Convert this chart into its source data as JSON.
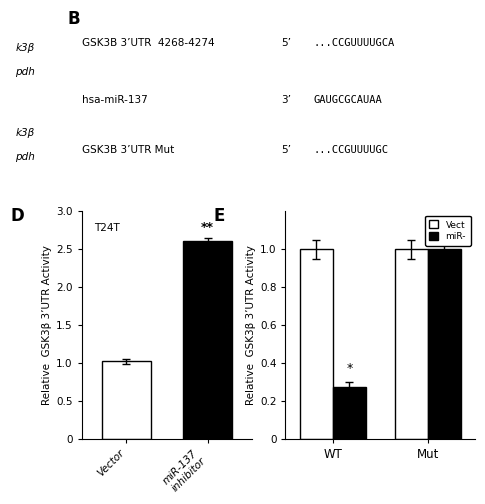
{
  "panel_B": {
    "rows": [
      {
        "label": "GSK3B 3’UTR  4268-4274",
        "dir": "5’",
        "seq": "...CCGUUUUGCA"
      },
      {
        "label": "hsa-miR-137",
        "dir": "3’",
        "seq": "GAUGCGCAUAA"
      },
      {
        "label": "GSK3B 3’UTR Mut",
        "dir": "5’",
        "seq": "...CCGUUUUGC"
      }
    ],
    "left_italic": [
      {
        "text": "k3β",
        "row": 0,
        "sub": 0
      },
      {
        "text": "pdh",
        "row": 0,
        "sub": 1
      },
      {
        "text": "k3β",
        "row": 2,
        "sub": 0
      },
      {
        "text": "pdh",
        "row": 2,
        "sub": 1
      }
    ]
  },
  "panel_D": {
    "title": "T24T",
    "categories": [
      "Vector",
      "miR-137\ninhibitor"
    ],
    "values": [
      1.02,
      2.6
    ],
    "errors": [
      0.03,
      0.04
    ],
    "colors": [
      "white",
      "black"
    ],
    "ylabel": "Relative  GSK3β 3’UTR Activity",
    "ylim": [
      0,
      3.0
    ],
    "yticks": [
      0,
      0.5,
      1.0,
      1.5,
      2.0,
      2.5,
      3.0
    ],
    "sig_bar": 1,
    "sig_text": "**"
  },
  "panel_E": {
    "categories": [
      "WT",
      "Mut"
    ],
    "values_vector": [
      1.0,
      1.0
    ],
    "values_mir": [
      0.27,
      1.0
    ],
    "errors_vector": [
      0.05,
      0.05
    ],
    "errors_mir": [
      0.03,
      0.05
    ],
    "ylabel": "Relative  GSK3β 3’UTR Activity",
    "ylim": [
      0,
      1.2
    ],
    "yticks": [
      0,
      0.2,
      0.4,
      0.6,
      0.8,
      1.0
    ],
    "legend_labels": [
      "Vect",
      "miR-"
    ],
    "sig_group": 0,
    "sig_bar": 1,
    "sig_text": "*"
  }
}
